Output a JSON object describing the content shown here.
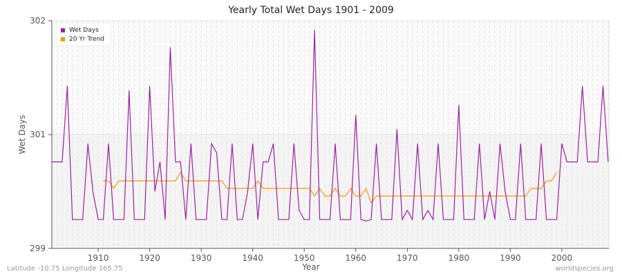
{
  "title": "Yearly Total Wet Days 1901 - 2009",
  "footer": {
    "location": "Latitude -10.75 Longitude 165.75",
    "source": "worldspecies.org"
  },
  "colors": {
    "wet_days": "#9b1fa6",
    "trend": "#f5960f",
    "grid": "#dddddd",
    "band": "#f4f4f4"
  },
  "chart_data": {
    "type": "line",
    "title": "Yearly Total Wet Days 1901 - 2009",
    "xlabel": "Year",
    "ylabel": "Wet Days",
    "x_ticks": [
      1910,
      1920,
      1930,
      1940,
      1950,
      1960,
      1970,
      1980,
      1990,
      2000
    ],
    "y_tick_labels": [
      {
        "label": "302",
        "value": 302.0
      },
      {
        "label": "301",
        "value": 300.5
      },
      {
        "label": "299",
        "value": 299.0
      }
    ],
    "ylim": [
      299.0,
      302.0
    ],
    "xlim": [
      1901,
      2009
    ],
    "grid": true,
    "legend_position": "top-left",
    "legend": [
      "Wet Days",
      "20 Yr Trend"
    ],
    "series": [
      {
        "name": "Wet Days",
        "x_start": 1901,
        "values": [
          300.14,
          300.14,
          300.14,
          301.14,
          299.38,
          299.38,
          299.38,
          300.38,
          299.74,
          299.38,
          299.38,
          300.38,
          299.38,
          299.38,
          299.38,
          301.08,
          299.38,
          299.38,
          299.38,
          301.14,
          299.75,
          300.14,
          299.38,
          301.65,
          300.14,
          300.14,
          299.38,
          300.38,
          299.38,
          299.38,
          299.38,
          300.38,
          300.26,
          299.38,
          299.38,
          300.38,
          299.38,
          299.38,
          299.74,
          300.38,
          299.38,
          300.14,
          300.14,
          300.38,
          299.38,
          299.38,
          299.38,
          300.38,
          299.5,
          299.38,
          299.38,
          301.88,
          299.38,
          299.38,
          299.38,
          300.38,
          299.38,
          299.38,
          299.38,
          300.76,
          299.38,
          299.36,
          299.38,
          300.38,
          299.38,
          299.38,
          299.38,
          300.57,
          299.38,
          299.5,
          299.38,
          300.38,
          299.38,
          299.5,
          299.38,
          300.38,
          299.38,
          299.38,
          299.38,
          300.89,
          299.38,
          299.38,
          299.38,
          300.38,
          299.38,
          299.75,
          299.38,
          300.38,
          299.75,
          299.38,
          299.38,
          300.38,
          299.38,
          299.38,
          299.38,
          300.38,
          299.38,
          299.38,
          299.38,
          300.38,
          300.14,
          300.14,
          300.14,
          301.14,
          300.14,
          300.14,
          300.14,
          301.14,
          300.14
        ]
      },
      {
        "name": "20 Yr Trend",
        "x_start": 1911,
        "values": [
          299.89,
          299.89,
          299.79,
          299.89,
          299.89,
          299.89,
          299.89,
          299.89,
          299.89,
          299.89,
          299.89,
          299.89,
          299.89,
          299.89,
          299.89,
          300.0,
          299.89,
          299.89,
          299.89,
          299.89,
          299.89,
          299.89,
          299.89,
          299.89,
          299.79,
          299.79,
          299.79,
          299.79,
          299.79,
          299.79,
          299.89,
          299.79,
          299.79,
          299.79,
          299.79,
          299.79,
          299.79,
          299.79,
          299.79,
          299.79,
          299.79,
          299.69,
          299.79,
          299.69,
          299.69,
          299.79,
          299.69,
          299.69,
          299.79,
          299.69,
          299.69,
          299.79,
          299.6,
          299.69,
          299.69,
          299.69,
          299.69,
          299.69,
          299.69,
          299.69,
          299.69,
          299.69,
          299.69,
          299.69,
          299.69,
          299.69,
          299.69,
          299.69,
          299.69,
          299.69,
          299.69,
          299.69,
          299.69,
          299.69,
          299.69,
          299.69,
          299.69,
          299.69,
          299.69,
          299.69,
          299.69,
          299.69,
          299.69,
          299.79,
          299.79,
          299.79,
          299.89,
          299.89,
          300.0
        ]
      }
    ]
  }
}
